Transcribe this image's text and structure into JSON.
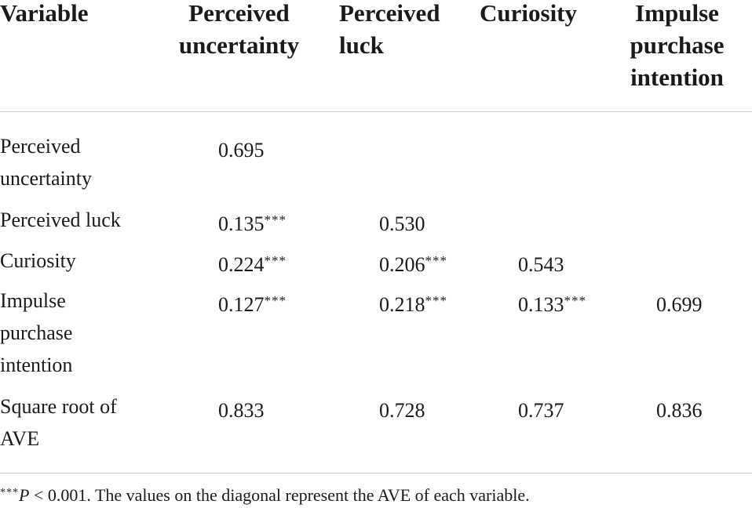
{
  "table": {
    "headers": [
      [
        "Variable"
      ],
      [
        "Perceived",
        "uncertainty"
      ],
      [
        "Perceived",
        "luck"
      ],
      [
        "Curiosity"
      ],
      [
        "Impulse",
        "purchase",
        "intention"
      ]
    ],
    "rows": [
      {
        "label": [
          "Perceived",
          "uncertainty"
        ],
        "cells": [
          {
            "value": "0.695",
            "sig": ""
          },
          {
            "value": "",
            "sig": ""
          },
          {
            "value": "",
            "sig": ""
          },
          {
            "value": "",
            "sig": ""
          }
        ]
      },
      {
        "label": [
          "Perceived luck"
        ],
        "cells": [
          {
            "value": "0.135",
            "sig": "***"
          },
          {
            "value": "0.530",
            "sig": ""
          },
          {
            "value": "",
            "sig": ""
          },
          {
            "value": "",
            "sig": ""
          }
        ]
      },
      {
        "label": [
          "Curiosity"
        ],
        "cells": [
          {
            "value": "0.224",
            "sig": "***"
          },
          {
            "value": "0.206",
            "sig": "***"
          },
          {
            "value": "0.543",
            "sig": ""
          },
          {
            "value": "",
            "sig": ""
          }
        ]
      },
      {
        "label": [
          "Impulse",
          "purchase",
          "intention"
        ],
        "cells": [
          {
            "value": "0.127",
            "sig": "***"
          },
          {
            "value": "0.218",
            "sig": "***"
          },
          {
            "value": "0.133",
            "sig": "***"
          },
          {
            "value": "0.699",
            "sig": ""
          }
        ]
      },
      {
        "label": [
          "Square root of",
          "AVE"
        ],
        "cells": [
          {
            "value": "0.833",
            "sig": ""
          },
          {
            "value": "0.728",
            "sig": ""
          },
          {
            "value": "0.737",
            "sig": ""
          },
          {
            "value": "0.836",
            "sig": ""
          }
        ]
      }
    ]
  },
  "footnote": {
    "sig": "***",
    "p": "P",
    "rest": " < 0.001. The values on the diagonal represent the AVE of each variable."
  }
}
